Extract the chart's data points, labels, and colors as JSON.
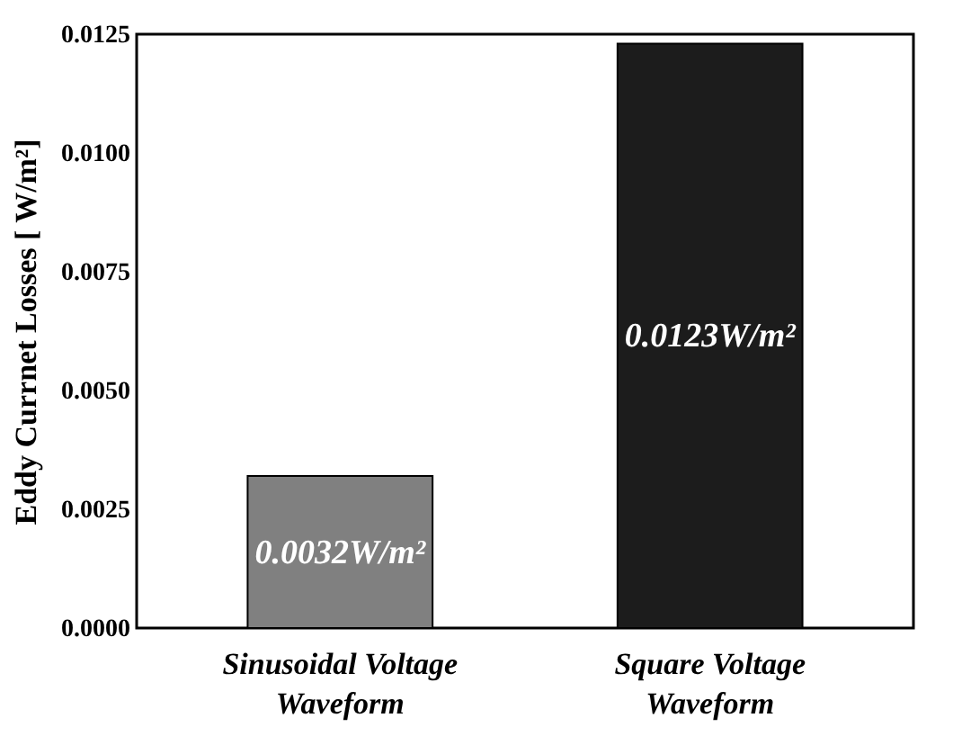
{
  "chart_data": {
    "type": "bar",
    "categories": [
      "Sinusoidal Voltage Waveform",
      "Square Voltage Waveform"
    ],
    "values": [
      0.0032,
      0.0123
    ],
    "colors": [
      "#808080",
      "#1c1c1c"
    ],
    "value_labels": [
      "0.0032W/m²",
      "0.0123W/m²"
    ],
    "ylabel": "Eddy Currnet Losses [ W/m²]",
    "ylim": [
      0,
      0.0125
    ],
    "yticks": [
      {
        "value": 0,
        "label": "0.0000"
      },
      0.0025,
      {
        "value": 0.005,
        "label": "0.0050"
      },
      0.0075,
      {
        "value": 0.01,
        "label": "0.0100"
      },
      0.0125
    ]
  }
}
